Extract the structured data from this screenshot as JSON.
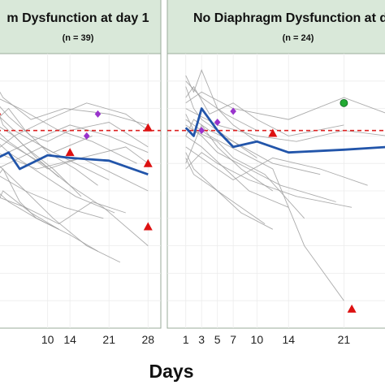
{
  "chart_data": {
    "type": "line",
    "xlabel": "Days",
    "ylabel": "",
    "grid": true,
    "colors": {
      "individual": "#9e9e9e",
      "mean": "#2255aa",
      "threshold": "#dd2222",
      "triangle": "#dd1111",
      "diamond": "#9933cc",
      "circle": "#22aa33",
      "panel_bg": "#ffffff",
      "strip_bg": "#d9e8d9",
      "border": "#9aab9a"
    },
    "ylim": [
      0,
      100
    ],
    "threshold": 72,
    "panels": [
      {
        "title": "m Dysfunction at day 1",
        "subtitle": "(n = 39)",
        "xlim": [
          0,
          30
        ],
        "x_ticks": [
          10,
          14,
          21,
          28
        ],
        "x_tick_labels": [
          "10",
          "14",
          "21",
          "28"
        ],
        "mean_series": {
          "x": [
            0,
            1,
            3,
            5,
            7,
            10,
            14,
            21,
            28
          ],
          "y": [
            67,
            62,
            64,
            58,
            60,
            63,
            62,
            61,
            56
          ]
        },
        "individual_series": [
          {
            "x": [
              0,
              3,
              7,
              10,
              14,
              21,
              28
            ],
            "y": [
              82,
              77,
              70,
              68,
              72,
              75,
              66
            ]
          },
          {
            "x": [
              0,
              2,
              5,
              8,
              12
            ],
            "y": [
              55,
              58,
              46,
              40,
              36
            ]
          },
          {
            "x": [
              0,
              4,
              9,
              14,
              20,
              28
            ],
            "y": [
              70,
              66,
              60,
              52,
              44,
              30
            ]
          },
          {
            "x": [
              0,
              3,
              6,
              10,
              15,
              19
            ],
            "y": [
              76,
              80,
              72,
              64,
              58,
              52
            ]
          },
          {
            "x": [
              0,
              5,
              11,
              17,
              23
            ],
            "y": [
              60,
              52,
              40,
              30,
              24
            ]
          },
          {
            "x": [
              0,
              2,
              7,
              13,
              21,
              28
            ],
            "y": [
              88,
              84,
              76,
              80,
              78,
              74
            ]
          },
          {
            "x": [
              0,
              6,
              12,
              18,
              24
            ],
            "y": [
              48,
              44,
              38,
              46,
              42
            ]
          },
          {
            "x": [
              0,
              4,
              8,
              12
            ],
            "y": [
              65,
              70,
              62,
              55
            ]
          },
          {
            "x": [
              0,
              3,
              10,
              16,
              22,
              28
            ],
            "y": [
              72,
              68,
              58,
              62,
              56,
              50
            ]
          },
          {
            "x": [
              0,
              5,
              9,
              15,
              21
            ],
            "y": [
              58,
              62,
              66,
              60,
              54
            ]
          },
          {
            "x": [
              0,
              2,
              6,
              11,
              16
            ],
            "y": [
              80,
              74,
              66,
              58,
              48
            ]
          },
          {
            "x": [
              0,
              7,
              14,
              21,
              28
            ],
            "y": [
              62,
              68,
              74,
              70,
              64
            ]
          },
          {
            "x": [
              0,
              3,
              8,
              14,
              19
            ],
            "y": [
              50,
              46,
              40,
              34,
              28
            ]
          },
          {
            "x": [
              0,
              4,
              10,
              17,
              24,
              28
            ],
            "y": [
              74,
              70,
              76,
              82,
              78,
              72
            ]
          },
          {
            "x": [
              0,
              6,
              13,
              20
            ],
            "y": [
              56,
              50,
              44,
              40
            ]
          },
          {
            "x": [
              0,
              3,
              9,
              15,
              22
            ],
            "y": [
              68,
              64,
              56,
              48,
              42
            ]
          },
          {
            "x": [
              0,
              5,
              12,
              18,
              26
            ],
            "y": [
              84,
              80,
              72,
              68,
              60
            ]
          },
          {
            "x": [
              0,
              2,
              7,
              12
            ],
            "y": [
              45,
              50,
              42,
              36
            ]
          },
          {
            "x": [
              0,
              8,
              16,
              24,
              28
            ],
            "y": [
              64,
              58,
              62,
              66,
              60
            ]
          },
          {
            "x": [
              0,
              4,
              11,
              18
            ],
            "y": [
              78,
              72,
              64,
              70
            ]
          }
        ],
        "markers": [
          {
            "shape": "triangle",
            "x": 0,
            "y": 79
          },
          {
            "shape": "triangle",
            "x": 14,
            "y": 64
          },
          {
            "shape": "triangle",
            "x": 28,
            "y": 73
          },
          {
            "shape": "triangle",
            "x": 28,
            "y": 60
          },
          {
            "shape": "triangle",
            "x": 28,
            "y": 37
          },
          {
            "shape": "diamond",
            "x": 19,
            "y": 78
          },
          {
            "shape": "diamond",
            "x": 17,
            "y": 70
          },
          {
            "shape": "diamond",
            "x": 0,
            "y": 33
          }
        ]
      },
      {
        "title": "No Diaphragm Dysfunction at da",
        "subtitle": "(n = 24)",
        "xlim": [
          0,
          30
        ],
        "x_ticks": [
          1,
          3,
          5,
          7,
          10,
          14,
          21
        ],
        "x_tick_labels": [
          "1",
          "3",
          "5",
          "7",
          "10",
          "14",
          "21"
        ],
        "mean_series": {
          "x": [
            1,
            2,
            3,
            5,
            7,
            10,
            14,
            21,
            28
          ],
          "y": [
            73,
            70,
            80,
            72,
            66,
            68,
            64,
            65,
            66
          ]
        },
        "individual_series": [
          {
            "x": [
              1,
              2,
              3,
              5,
              7,
              10
            ],
            "y": [
              92,
              86,
              94,
              80,
              74,
              68
            ]
          },
          {
            "x": [
              1,
              3,
              5,
              8,
              12
            ],
            "y": [
              60,
              74,
              66,
              58,
              50
            ]
          },
          {
            "x": [
              1,
              2,
              4,
              7,
              10,
              14,
              21
            ],
            "y": [
              84,
              88,
              78,
              82,
              76,
              70,
              74
            ]
          },
          {
            "x": [
              1,
              3,
              6,
              9,
              14
            ],
            "y": [
              70,
              66,
              58,
              50,
              44
            ]
          },
          {
            "x": [
              1,
              2,
              5,
              7,
              11,
              16
            ],
            "y": [
              78,
              72,
              68,
              62,
              56,
              40
            ]
          },
          {
            "x": [
              1,
              4,
              7,
              12,
              18,
              24
            ],
            "y": [
              66,
              60,
              54,
              62,
              58,
              52
            ]
          },
          {
            "x": [
              1,
              2,
              3,
              6,
              10
            ],
            "y": [
              88,
              80,
              76,
              70,
              62
            ]
          },
          {
            "x": [
              1,
              3,
              5,
              9,
              13,
              20
            ],
            "y": [
              74,
              70,
              64,
              58,
              52,
              46
            ]
          },
          {
            "x": [
              1,
              3,
              7,
              14,
              21,
              28
            ],
            "y": [
              82,
              86,
              80,
              76,
              84,
              78
            ]
          },
          {
            "x": [
              1,
              2,
              5,
              8,
              12
            ],
            "y": [
              64,
              58,
              50,
              42,
              36
            ]
          },
          {
            "x": [
              1,
              4,
              8,
              12,
              16,
              21
            ],
            "y": [
              76,
              70,
              64,
              58,
              30,
              10
            ]
          },
          {
            "x": [
              1,
              3,
              6,
              10
            ],
            "y": [
              90,
              84,
              78,
              72
            ]
          },
          {
            "x": [
              1,
              2,
              4,
              7,
              12,
              18
            ],
            "y": [
              70,
              76,
              72,
              68,
              60,
              56
            ]
          },
          {
            "x": [
              1,
              3,
              5,
              9,
              15,
              22
            ],
            "y": [
              58,
              64,
              60,
              54,
              48,
              44
            ]
          },
          {
            "x": [
              1,
              5,
              10,
              15,
              21,
              28
            ],
            "y": [
              80,
              74,
              70,
              68,
              72,
              70
            ]
          },
          {
            "x": [
              1,
              2,
              6,
              11
            ],
            "y": [
              62,
              56,
              48,
              38
            ]
          }
        ],
        "markers": [
          {
            "shape": "circle",
            "x": 21,
            "y": 82
          },
          {
            "shape": "diamond",
            "x": 7,
            "y": 79
          },
          {
            "shape": "diamond",
            "x": 5,
            "y": 75
          },
          {
            "shape": "diamond",
            "x": 3,
            "y": 72
          },
          {
            "shape": "triangle",
            "x": 12,
            "y": 71
          },
          {
            "shape": "triangle",
            "x": 22,
            "y": 7
          }
        ]
      }
    ]
  }
}
